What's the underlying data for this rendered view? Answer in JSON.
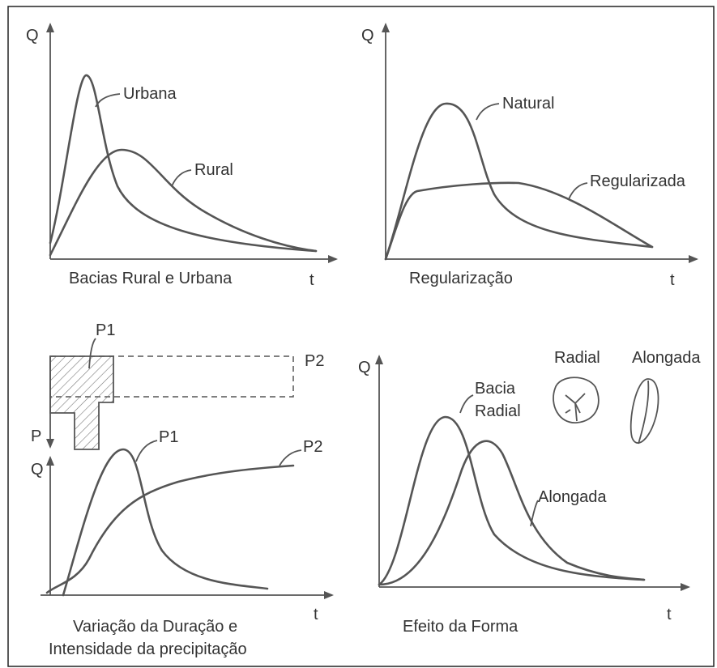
{
  "panels": [
    {
      "y_axis": "Q",
      "x_axis": "t",
      "caption": "Bacias Rural e Urbana",
      "curves": [
        "Urbana",
        "Rural"
      ]
    },
    {
      "y_axis": "Q",
      "x_axis": "t",
      "caption": "Regularização",
      "curves": [
        "Natural",
        "Regularizada"
      ]
    },
    {
      "y_axis": "Q",
      "x_axis": "t",
      "rain_axis": "P",
      "caption": [
        "Variação da Duração e",
        "Intensidade da precipitação"
      ],
      "hyetographs": [
        "P1",
        "P2"
      ],
      "curves": [
        "P1",
        "P2"
      ]
    },
    {
      "y_axis": "Q",
      "x_axis": "t",
      "caption": "Efeito da Forma",
      "curves": [
        [
          "Bacia",
          "Radial"
        ],
        "Alongada"
      ],
      "shapes": [
        "Radial",
        "Alongada"
      ]
    }
  ]
}
